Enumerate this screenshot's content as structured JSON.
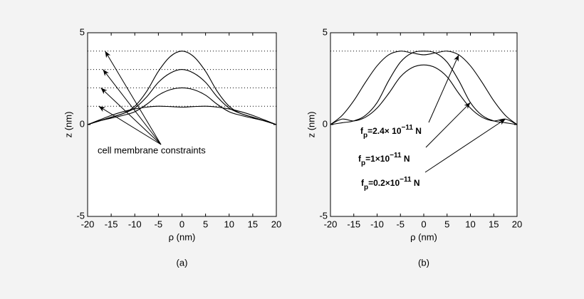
{
  "chart_data": [
    {
      "type": "line",
      "caption": "(a)",
      "x_label": "ρ (nm)",
      "y_label": "z (nm)",
      "x": [
        -20,
        -17.5,
        -15,
        -12.5,
        -10,
        -7.5,
        -5,
        -2.5,
        0,
        2.5,
        5,
        7.5,
        10,
        12.5,
        15,
        17.5,
        20
      ],
      "series": [
        {
          "color": "#000000",
          "values": [
            0,
            0.2,
            0.4,
            0.6,
            1.0,
            1.8,
            2.9,
            3.7,
            4.0,
            3.7,
            2.9,
            1.8,
            1.0,
            0.6,
            0.4,
            0.2,
            0
          ]
        },
        {
          "color": "#000000",
          "values": [
            0,
            0.2,
            0.4,
            0.6,
            0.9,
            1.5,
            2.3,
            2.8,
            3.0,
            2.8,
            2.3,
            1.5,
            0.9,
            0.6,
            0.4,
            0.2,
            0
          ]
        },
        {
          "color": "#000000",
          "values": [
            0,
            0.2,
            0.35,
            0.5,
            0.7,
            1.1,
            1.6,
            1.9,
            2.0,
            1.9,
            1.6,
            1.1,
            0.7,
            0.5,
            0.35,
            0.2,
            0
          ]
        },
        {
          "color": "#000000",
          "values": [
            0,
            0.25,
            0.5,
            0.7,
            0.85,
            0.95,
            1.0,
            0.98,
            0.95,
            0.98,
            1.0,
            0.95,
            0.85,
            0.7,
            0.5,
            0.25,
            0
          ]
        }
      ],
      "constraints": [
        4,
        3,
        2,
        1
      ],
      "annotation": "cell membrane constraints",
      "xlim": [
        -20,
        20
      ],
      "ylim": [
        -5,
        5
      ],
      "xticks": [
        -20,
        -15,
        -10,
        -5,
        0,
        5,
        10,
        15,
        20
      ],
      "yticks": [
        -5,
        0,
        5
      ]
    },
    {
      "type": "line",
      "caption": "(b)",
      "x_label": "ρ (nm)",
      "y_label": "z (nm)",
      "x": [
        -20,
        -17.5,
        -15,
        -12.5,
        -10,
        -7.5,
        -5,
        -2.5,
        0,
        2.5,
        5,
        7.5,
        10,
        12.5,
        15,
        17.5,
        20
      ],
      "series": [
        {
          "color": "#000000",
          "label": {
            "f": "f",
            "sub": "p",
            "coef": "=2.4× 10",
            "exp": "−11",
            "unit": " N"
          },
          "values": [
            0,
            0.5,
            1.3,
            2.3,
            3.2,
            3.8,
            4.0,
            3.9,
            3.8,
            3.9,
            4.0,
            3.8,
            3.2,
            2.3,
            1.3,
            0.5,
            0
          ]
        },
        {
          "color": "#000000",
          "label": {
            "f": "f",
            "sub": "p",
            "coef": "=1×10",
            "exp": "−11",
            "unit": " N"
          },
          "values": [
            0,
            0.1,
            0.2,
            0.5,
            1.2,
            2.4,
            3.4,
            3.9,
            4.0,
            3.9,
            3.4,
            2.4,
            1.2,
            0.5,
            0.2,
            0.1,
            0
          ]
        },
        {
          "color": "#000000",
          "label": {
            "f": "f",
            "sub": "p",
            "coef": "=0.2×10",
            "exp": "−11",
            "unit": " N"
          },
          "values": [
            0,
            0.3,
            0.2,
            0.4,
            0.9,
            1.7,
            2.6,
            3.1,
            3.25,
            3.1,
            2.6,
            1.7,
            0.9,
            0.4,
            0.2,
            0.3,
            0
          ]
        }
      ],
      "constraints": [
        4
      ],
      "xlim": [
        -20,
        20
      ],
      "ylim": [
        -5,
        5
      ],
      "xticks": [
        -20,
        -15,
        -10,
        -5,
        0,
        5,
        10,
        15,
        20
      ],
      "yticks": [
        -5,
        0,
        5
      ]
    }
  ]
}
